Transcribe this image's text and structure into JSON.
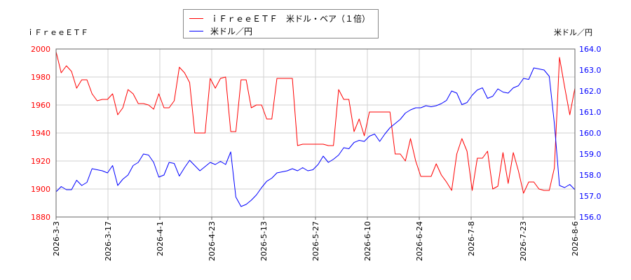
{
  "chart_data": {
    "type": "line",
    "left_axis_title": "ｉＦｒｅｅＥＴＦ",
    "right_axis_title": "米ドル／円",
    "x_ticks": [
      "2026-3-3",
      "2026-3-17",
      "2026-4-1",
      "2026-4-23",
      "2026-5-13",
      "2026-5-27",
      "2026-6-10",
      "2026-6-24",
      "2026-7-8",
      "2026-7-23",
      "2026-8-6"
    ],
    "y_left": {
      "min": 1880,
      "max": 2000,
      "ticks": [
        1880,
        1900,
        1920,
        1940,
        1960,
        1980,
        2000
      ],
      "color": "#ff0000"
    },
    "y_right": {
      "min": 156.0,
      "max": 164.0,
      "ticks": [
        "156.0",
        "157.0",
        "158.0",
        "159.0",
        "160.0",
        "161.0",
        "162.0",
        "163.0",
        "164.0"
      ],
      "color": "#0000ff"
    },
    "grid": true,
    "legend_position": "top",
    "series": [
      {
        "name": "ｉＦｒｅｅＥＴＦ　米ドル・ベア（１倍）",
        "axis": "left",
        "color": "#ff0000",
        "values": [
          1998,
          1983,
          1988,
          1984,
          1972,
          1978,
          1978,
          1968,
          1963,
          1964,
          1964,
          1968,
          1953,
          1958,
          1971,
          1968,
          1961,
          1961,
          1960,
          1957,
          1968,
          1958,
          1958,
          1963,
          1987,
          1983,
          1976,
          1940,
          1940,
          1940,
          1979,
          1972,
          1979,
          1980,
          1941,
          1941,
          1978,
          1978,
          1958,
          1960,
          1960,
          1950,
          1950,
          1979,
          1979,
          1979,
          1979,
          1931,
          1932,
          1932,
          1932,
          1932,
          1932,
          1931,
          1931,
          1971,
          1964,
          1964,
          1941,
          1950,
          1938,
          1955,
          1955,
          1955,
          1955,
          1955,
          1925,
          1925,
          1920,
          1936,
          1920,
          1909,
          1909,
          1909,
          1918,
          1910,
          1905,
          1899,
          1925,
          1936,
          1927,
          1899,
          1922,
          1922,
          1927,
          1900,
          1902,
          1926,
          1904,
          1926,
          1913,
          1897,
          1905,
          1905,
          1900,
          1899,
          1899,
          1915,
          1994,
          1973,
          1953,
          1972
        ]
      },
      {
        "name": "米ドル／円",
        "axis": "right",
        "color": "#0000ff",
        "values": [
          157.2,
          157.45,
          157.3,
          157.3,
          157.75,
          157.5,
          157.65,
          158.3,
          158.25,
          158.2,
          158.1,
          158.45,
          157.5,
          157.8,
          158.0,
          158.45,
          158.6,
          159.0,
          158.95,
          158.6,
          157.9,
          158.0,
          158.6,
          158.55,
          157.95,
          158.35,
          158.7,
          158.45,
          158.2,
          158.4,
          158.6,
          158.5,
          158.65,
          158.5,
          159.1,
          156.95,
          156.5,
          156.6,
          156.8,
          157.05,
          157.4,
          157.7,
          157.85,
          158.1,
          158.15,
          158.2,
          158.3,
          158.2,
          158.35,
          158.2,
          158.25,
          158.5,
          158.9,
          158.6,
          158.75,
          158.95,
          159.3,
          159.25,
          159.55,
          159.65,
          159.6,
          159.85,
          159.95,
          159.6,
          159.95,
          160.25,
          160.45,
          160.65,
          160.95,
          161.1,
          161.2,
          161.2,
          161.3,
          161.25,
          161.3,
          161.4,
          161.55,
          162.0,
          161.9,
          161.35,
          161.45,
          161.8,
          162.05,
          162.15,
          161.65,
          161.75,
          162.1,
          161.95,
          161.9,
          162.15,
          162.25,
          162.6,
          162.55,
          163.1,
          163.05,
          163.0,
          162.7,
          160.45,
          157.5,
          157.4,
          157.55,
          157.3
        ]
      }
    ]
  }
}
